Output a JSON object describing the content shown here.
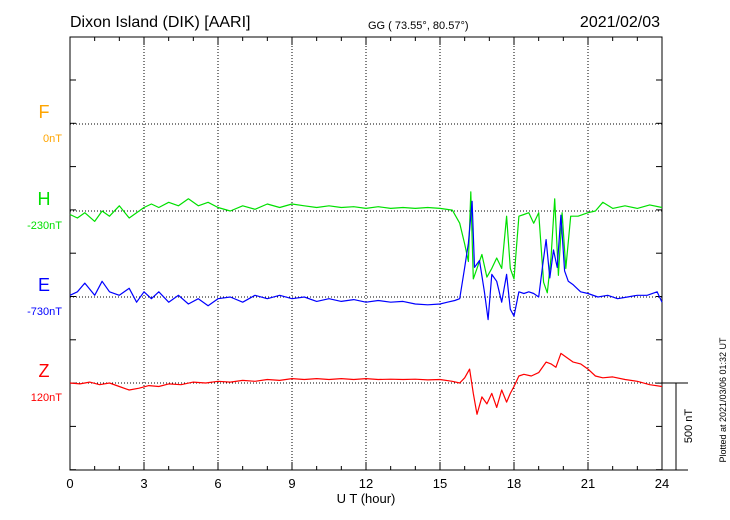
{
  "header": {
    "station": "Dixon Island (DIK)  [AARI]",
    "coords": "GG ( 73.55°,  80.57°)",
    "date": "2021/02/03"
  },
  "side_note": "Plotted at 2021/03/06 01:32 UT",
  "scale_bar": {
    "label": "500 nT",
    "value": 500
  },
  "chart_data": {
    "type": "line",
    "title": "",
    "xlabel": "U T (hour)",
    "ylabel": "",
    "xlim": [
      0,
      24
    ],
    "xticks": [
      0,
      3,
      6,
      9,
      12,
      15,
      18,
      21,
      24
    ],
    "xtick_labels": [
      "0",
      "3",
      "6",
      "9",
      "12",
      "15",
      "18",
      "21",
      "24"
    ],
    "grid": true,
    "legend": "left",
    "series": [
      {
        "name": "F",
        "baseline_label": "0nT",
        "baseline": 0,
        "color": "#ffa500",
        "points": []
      },
      {
        "name": "H",
        "baseline_label": "-230nT",
        "baseline": -230,
        "color": "#00e000",
        "points": [
          [
            0.0,
            -250
          ],
          [
            0.3,
            -270
          ],
          [
            0.6,
            -240
          ],
          [
            1.0,
            -290
          ],
          [
            1.3,
            -230
          ],
          [
            1.6,
            -260
          ],
          [
            2.0,
            -200
          ],
          [
            2.4,
            -270
          ],
          [
            2.7,
            -240
          ],
          [
            3.0,
            -210
          ],
          [
            3.3,
            -190
          ],
          [
            3.6,
            -210
          ],
          [
            4.0,
            -180
          ],
          [
            4.4,
            -200
          ],
          [
            4.8,
            -160
          ],
          [
            5.2,
            -200
          ],
          [
            5.6,
            -180
          ],
          [
            6.0,
            -210
          ],
          [
            6.5,
            -230
          ],
          [
            7.0,
            -200
          ],
          [
            7.5,
            -220
          ],
          [
            8.0,
            -190
          ],
          [
            8.5,
            -210
          ],
          [
            9.0,
            -190
          ],
          [
            9.5,
            -200
          ],
          [
            10.0,
            -210
          ],
          [
            10.5,
            -200
          ],
          [
            11.0,
            -210
          ],
          [
            11.5,
            -205
          ],
          [
            12.0,
            -215
          ],
          [
            12.5,
            -205
          ],
          [
            13.0,
            -215
          ],
          [
            13.5,
            -210
          ],
          [
            14.0,
            -215
          ],
          [
            14.5,
            -210
          ],
          [
            15.0,
            -215
          ],
          [
            15.5,
            -225
          ],
          [
            15.8,
            -300
          ],
          [
            16.0,
            -420
          ],
          [
            16.15,
            -520
          ],
          [
            16.25,
            -120
          ],
          [
            16.35,
            -620
          ],
          [
            16.5,
            -560
          ],
          [
            16.7,
            -480
          ],
          [
            16.9,
            -610
          ],
          [
            17.1,
            -560
          ],
          [
            17.3,
            -500
          ],
          [
            17.5,
            -560
          ],
          [
            17.7,
            -260
          ],
          [
            17.85,
            -560
          ],
          [
            18.0,
            -620
          ],
          [
            18.2,
            -260
          ],
          [
            18.4,
            -250
          ],
          [
            18.6,
            -240
          ],
          [
            18.8,
            -300
          ],
          [
            19.0,
            -240
          ],
          [
            19.2,
            -640
          ],
          [
            19.35,
            -700
          ],
          [
            19.5,
            -500
          ],
          [
            19.65,
            -160
          ],
          [
            19.8,
            -600
          ],
          [
            19.95,
            -240
          ],
          [
            20.1,
            -560
          ],
          [
            20.3,
            -260
          ],
          [
            20.6,
            -260
          ],
          [
            21.0,
            -240
          ],
          [
            21.3,
            -230
          ],
          [
            21.6,
            -180
          ],
          [
            22.0,
            -215
          ],
          [
            22.5,
            -200
          ],
          [
            23.0,
            -215
          ],
          [
            23.5,
            -195
          ],
          [
            24.0,
            -210
          ]
        ]
      },
      {
        "name": "E",
        "baseline_label": "-730nT",
        "baseline": -730,
        "color": "#0000ff",
        "points": [
          [
            0.0,
            -720
          ],
          [
            0.3,
            -700
          ],
          [
            0.6,
            -650
          ],
          [
            1.0,
            -720
          ],
          [
            1.3,
            -640
          ],
          [
            1.6,
            -700
          ],
          [
            2.0,
            -720
          ],
          [
            2.4,
            -680
          ],
          [
            2.7,
            -760
          ],
          [
            3.0,
            -700
          ],
          [
            3.3,
            -740
          ],
          [
            3.6,
            -700
          ],
          [
            4.0,
            -760
          ],
          [
            4.4,
            -720
          ],
          [
            4.8,
            -770
          ],
          [
            5.2,
            -740
          ],
          [
            5.6,
            -780
          ],
          [
            6.0,
            -740
          ],
          [
            6.5,
            -730
          ],
          [
            7.0,
            -760
          ],
          [
            7.5,
            -720
          ],
          [
            8.0,
            -740
          ],
          [
            8.5,
            -720
          ],
          [
            9.0,
            -740
          ],
          [
            9.5,
            -730
          ],
          [
            10.0,
            -755
          ],
          [
            10.5,
            -740
          ],
          [
            11.0,
            -755
          ],
          [
            11.5,
            -745
          ],
          [
            12.0,
            -760
          ],
          [
            12.5,
            -750
          ],
          [
            13.0,
            -760
          ],
          [
            13.5,
            -755
          ],
          [
            14.0,
            -770
          ],
          [
            14.5,
            -775
          ],
          [
            15.0,
            -770
          ],
          [
            15.3,
            -760
          ],
          [
            15.6,
            -750
          ],
          [
            15.8,
            -740
          ],
          [
            16.0,
            -560
          ],
          [
            16.15,
            -420
          ],
          [
            16.3,
            -180
          ],
          [
            16.4,
            -560
          ],
          [
            16.6,
            -520
          ],
          [
            16.8,
            -700
          ],
          [
            16.95,
            -860
          ],
          [
            17.1,
            -600
          ],
          [
            17.3,
            -640
          ],
          [
            17.5,
            -760
          ],
          [
            17.7,
            -600
          ],
          [
            17.85,
            -800
          ],
          [
            18.0,
            -840
          ],
          [
            18.2,
            -700
          ],
          [
            18.4,
            -710
          ],
          [
            18.6,
            -700
          ],
          [
            18.8,
            -710
          ],
          [
            19.0,
            -730
          ],
          [
            19.15,
            -560
          ],
          [
            19.3,
            -400
          ],
          [
            19.45,
            -620
          ],
          [
            19.6,
            -460
          ],
          [
            19.75,
            -560
          ],
          [
            19.9,
            -260
          ],
          [
            20.05,
            -580
          ],
          [
            20.2,
            -640
          ],
          [
            20.4,
            -660
          ],
          [
            20.7,
            -700
          ],
          [
            21.0,
            -710
          ],
          [
            21.4,
            -730
          ],
          [
            21.8,
            -720
          ],
          [
            22.2,
            -740
          ],
          [
            22.6,
            -730
          ],
          [
            23.0,
            -720
          ],
          [
            23.4,
            -720
          ],
          [
            23.8,
            -700
          ],
          [
            24.0,
            -760
          ]
        ]
      },
      {
        "name": "Z",
        "baseline_label": "120nT",
        "baseline": 120,
        "color": "#ff0000",
        "points": [
          [
            0.0,
            120
          ],
          [
            0.4,
            115
          ],
          [
            0.8,
            125
          ],
          [
            1.2,
            110
          ],
          [
            1.6,
            120
          ],
          [
            2.0,
            100
          ],
          [
            2.4,
            80
          ],
          [
            2.8,
            90
          ],
          [
            3.2,
            105
          ],
          [
            3.6,
            100
          ],
          [
            4.0,
            115
          ],
          [
            4.5,
            110
          ],
          [
            5.0,
            125
          ],
          [
            5.5,
            120
          ],
          [
            6.0,
            130
          ],
          [
            6.5,
            125
          ],
          [
            7.0,
            135
          ],
          [
            7.5,
            130
          ],
          [
            8.0,
            140
          ],
          [
            8.5,
            135
          ],
          [
            9.0,
            145
          ],
          [
            9.5,
            140
          ],
          [
            10.0,
            145
          ],
          [
            10.5,
            140
          ],
          [
            11.0,
            145
          ],
          [
            11.5,
            140
          ],
          [
            12.0,
            145
          ],
          [
            12.5,
            140
          ],
          [
            13.0,
            142
          ],
          [
            13.5,
            140
          ],
          [
            14.0,
            142
          ],
          [
            14.5,
            138
          ],
          [
            15.0,
            140
          ],
          [
            15.5,
            130
          ],
          [
            15.8,
            120
          ],
          [
            16.0,
            150
          ],
          [
            16.2,
            200
          ],
          [
            16.35,
            60
          ],
          [
            16.5,
            -60
          ],
          [
            16.7,
            40
          ],
          [
            16.9,
            0
          ],
          [
            17.1,
            60
          ],
          [
            17.3,
            -20
          ],
          [
            17.5,
            80
          ],
          [
            17.7,
            10
          ],
          [
            17.85,
            60
          ],
          [
            18.0,
            100
          ],
          [
            18.2,
            160
          ],
          [
            18.4,
            170
          ],
          [
            18.7,
            160
          ],
          [
            19.0,
            180
          ],
          [
            19.3,
            240
          ],
          [
            19.5,
            230
          ],
          [
            19.7,
            210
          ],
          [
            19.9,
            290
          ],
          [
            20.1,
            270
          ],
          [
            20.4,
            240
          ],
          [
            20.7,
            230
          ],
          [
            21.0,
            200
          ],
          [
            21.3,
            160
          ],
          [
            21.6,
            150
          ],
          [
            22.0,
            155
          ],
          [
            22.5,
            140
          ],
          [
            23.0,
            130
          ],
          [
            23.5,
            110
          ],
          [
            24.0,
            100
          ]
        ]
      }
    ]
  }
}
